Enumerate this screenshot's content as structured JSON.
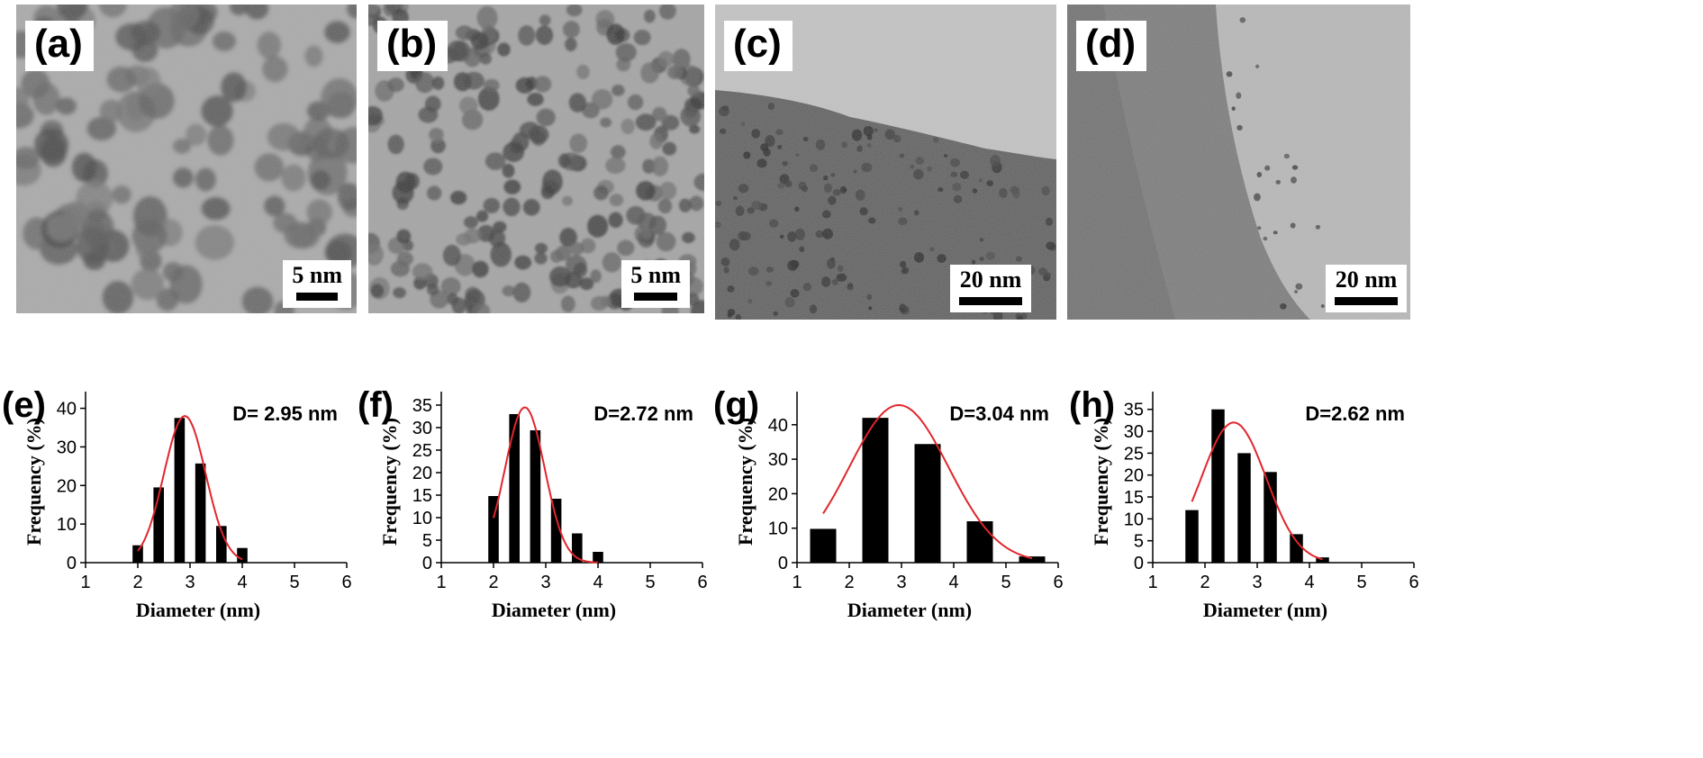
{
  "figure": {
    "panels_top": [
      {
        "tag": "(a)",
        "scale_label": "5 nm"
      },
      {
        "tag": "(b)",
        "scale_label": "5 nm"
      },
      {
        "tag": "(c)",
        "scale_label": "20 nm"
      },
      {
        "tag": "(d)",
        "scale_label": "20 nm"
      }
    ]
  },
  "colors": {
    "bar": "#000000",
    "fit": "#e0262c",
    "axis": "#000000"
  },
  "chart_data": [
    {
      "type": "bar",
      "tag": "(e)",
      "annotation": "D= 2.95 nm",
      "xlabel": "Diameter (nm)",
      "ylabel": "Frequency (%)",
      "xlim": [
        1,
        6
      ],
      "ylim": [
        0,
        42
      ],
      "xticks": [
        1,
        2,
        3,
        4,
        5,
        6
      ],
      "yticks": [
        0,
        10,
        20,
        30,
        40
      ],
      "x": [
        2.0,
        2.4,
        2.8,
        3.2,
        3.6,
        4.0
      ],
      "values": [
        4.5,
        19.5,
        37.5,
        25.7,
        9.5,
        3.8
      ],
      "fit": {
        "mean": 2.9,
        "sigma": 0.4,
        "peak": 38
      }
    },
    {
      "type": "bar",
      "tag": "(f)",
      "annotation": "D=2.72 nm",
      "xlabel": "Diameter (nm)",
      "ylabel": "Frequency (%)",
      "xlim": [
        1,
        6
      ],
      "ylim": [
        0,
        36
      ],
      "xticks": [
        1,
        2,
        3,
        4,
        5,
        6
      ],
      "yticks": [
        0,
        5,
        10,
        15,
        20,
        25,
        30,
        35
      ],
      "x": [
        2.0,
        2.4,
        2.8,
        3.2,
        3.6,
        4.0
      ],
      "values": [
        14.8,
        33.0,
        29.4,
        14.2,
        6.5,
        2.4
      ],
      "fit": {
        "mean": 2.6,
        "sigma": 0.38,
        "peak": 34.5
      }
    },
    {
      "type": "bar",
      "tag": "(g)",
      "annotation": "D=3.04 nm",
      "xlabel": "Diameter (nm)",
      "ylabel": "Frequency (%)",
      "xlim": [
        1,
        6
      ],
      "ylim": [
        0,
        47
      ],
      "xticks": [
        1,
        2,
        3,
        4,
        5,
        6
      ],
      "yticks": [
        0,
        10,
        20,
        30,
        40
      ],
      "x": [
        1.5,
        2.5,
        3.5,
        4.5,
        5.5
      ],
      "values": [
        9.8,
        42.0,
        34.4,
        12.0,
        1.8
      ],
      "fit": {
        "mean": 2.95,
        "sigma": 0.95,
        "peak": 45.7
      }
    },
    {
      "type": "bar",
      "tag": "(h)",
      "annotation": "D=2.62 nm",
      "xlabel": "Diameter (nm)",
      "ylabel": "Frequency (%)",
      "xlim": [
        1,
        6
      ],
      "ylim": [
        0,
        37
      ],
      "xticks": [
        1,
        2,
        3,
        4,
        5,
        6
      ],
      "yticks": [
        0,
        5,
        10,
        15,
        20,
        25,
        30,
        35
      ],
      "x": [
        1.75,
        2.25,
        2.75,
        3.25,
        3.75,
        4.25
      ],
      "values": [
        12.0,
        35.0,
        25.0,
        20.7,
        6.5,
        1.2
      ],
      "fit": {
        "mean": 2.55,
        "sigma": 0.62,
        "peak": 32
      }
    }
  ]
}
